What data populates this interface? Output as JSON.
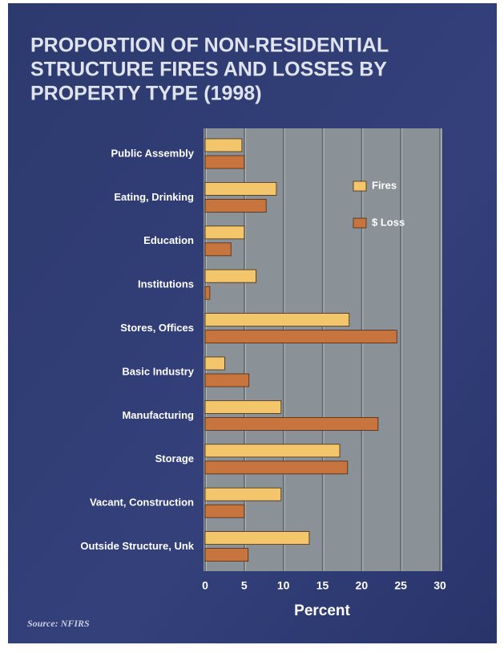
{
  "chart_data": {
    "type": "hbar",
    "title_lines": [
      "PROPORTION OF NON-RESIDENTIAL",
      "STRUCTURE FIRES AND LOSSES BY",
      "PROPERTY TYPE (1998)"
    ],
    "x_label": "Percent",
    "source": "Source: NFIRS",
    "categories": [
      "Public Assembly",
      "Eating, Drinking",
      "Education",
      "Institutions",
      "Stores, Offices",
      "Basic Industry",
      "Manufacturing",
      "Storage",
      "Vacant, Construction",
      "Outside Structure, Unk"
    ],
    "series": [
      {
        "name": "Fires",
        "color": "#f3c66c",
        "values": [
          4.7,
          9.1,
          5,
          6.5,
          18.4,
          2.5,
          9.7,
          17.2,
          9.7,
          13.3
        ]
      },
      {
        "name": "$ Loss",
        "color": "#c8743e",
        "values": [
          5,
          7.8,
          3.3,
          0.6,
          24.5,
          5.6,
          22.1,
          18.2,
          5,
          5.5
        ]
      }
    ],
    "xlim": [
      0,
      30
    ],
    "xticks": [
      0,
      5,
      10,
      15,
      20,
      25,
      30
    ],
    "grid": true,
    "legend": "top-right"
  }
}
